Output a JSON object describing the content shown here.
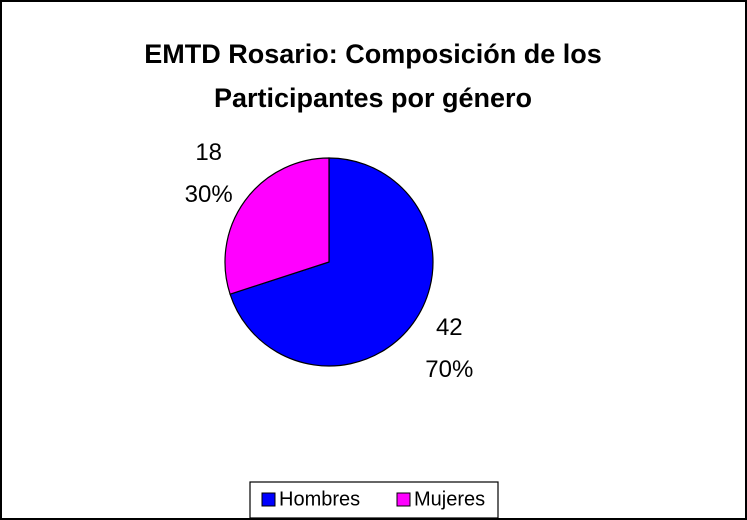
{
  "chart_data": {
    "type": "pie",
    "title": [
      "EMTD Rosario: Composición de los",
      "Participantes por género"
    ],
    "categories": [
      "Hombres",
      "Mujeres"
    ],
    "values": [
      42,
      18
    ],
    "percent_labels": [
      "70%",
      "30%"
    ],
    "colors": [
      "#0000ff",
      "#ff00ff"
    ],
    "legend": "bottom"
  }
}
